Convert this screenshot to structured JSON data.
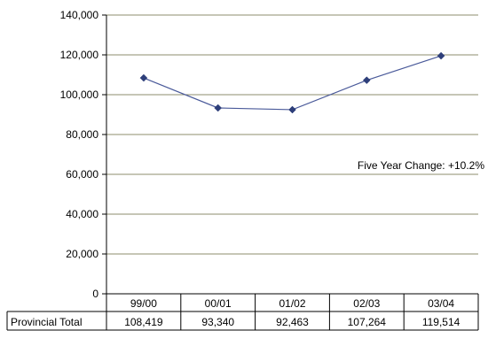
{
  "chart_data": {
    "type": "line",
    "categories": [
      "99/00",
      "00/01",
      "01/02",
      "02/03",
      "03/04"
    ],
    "series": [
      {
        "name": "Provincial Total",
        "values": [
          108419,
          93340,
          92463,
          107264,
          119514
        ]
      }
    ],
    "table": {
      "row_label": "Provincial Total",
      "cells": [
        "108,419",
        "93,340",
        "92,463",
        "107,264",
        "119,514"
      ]
    },
    "y_ticks": [
      "0",
      "20,000",
      "40,000",
      "60,000",
      "80,000",
      "100,000",
      "120,000",
      "140,000"
    ],
    "ylim": [
      0,
      140000
    ],
    "annotation": "Five Year Change: +10.2%",
    "grid": true,
    "colors": {
      "line": "#4a5a9a",
      "marker": "#2e3f7a",
      "grid": "#8c8c6e"
    }
  }
}
